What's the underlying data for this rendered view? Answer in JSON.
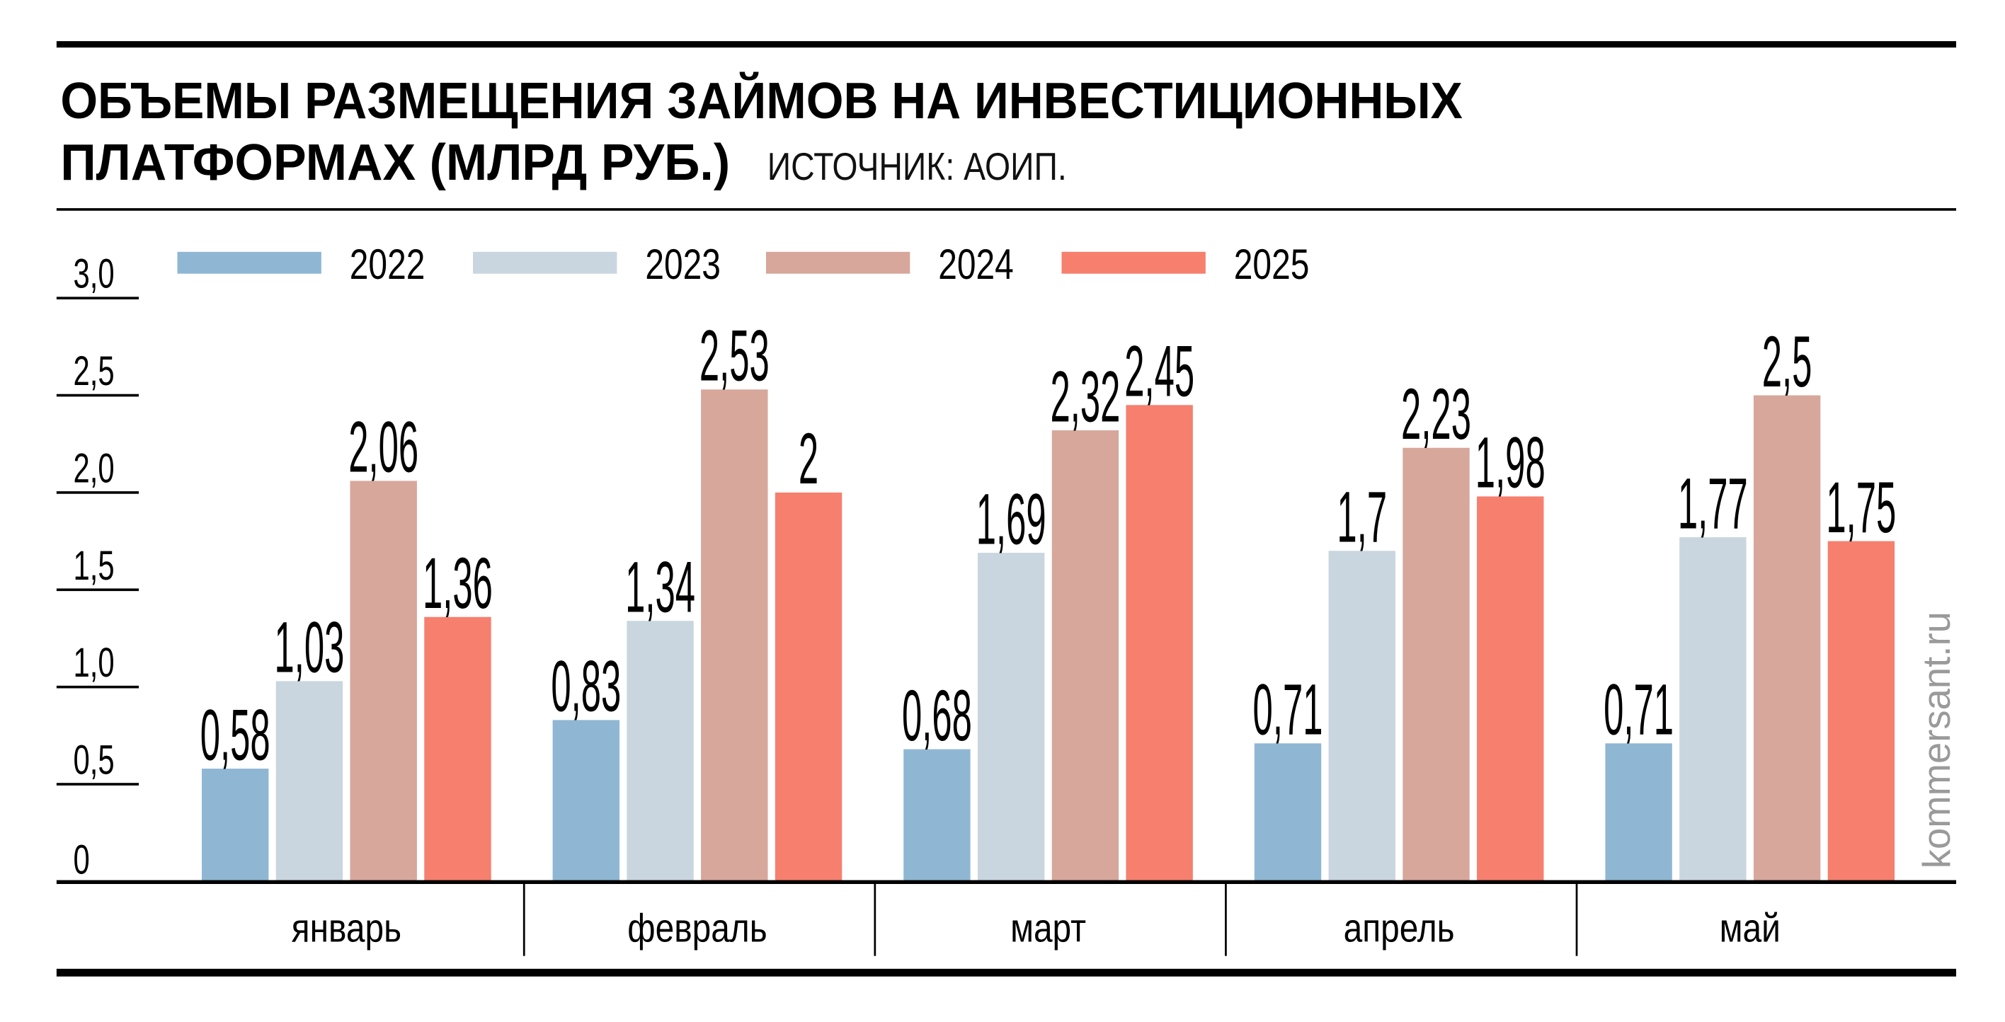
{
  "title_line1": "ОБЪЕМЫ РАЗМЕЩЕНИЯ ЗАЙМОВ НА ИНВЕСТИЦИОННЫХ",
  "title_line2": "ПЛАТФОРМАХ (МЛРД РУБ.)",
  "source": "ИСТОЧНИК: АОИП.",
  "watermark": "kommersant.ru",
  "chart_data": {
    "type": "bar",
    "title": "ОБЪЕМЫ РАЗМЕЩЕНИЯ ЗАЙМОВ НА ИНВЕСТИЦИОННЫХ ПЛАТФОРМАХ (МЛРД РУБ.)",
    "xlabel": "",
    "ylabel": "",
    "ylim": [
      0,
      3.0
    ],
    "yticks": [
      0,
      0.5,
      1.0,
      1.5,
      2.0,
      2.5,
      3.0
    ],
    "ytick_labels": [
      "0",
      "0,5",
      "1,0",
      "1,5",
      "2,0",
      "2,5",
      "3,0"
    ],
    "categories": [
      "январь",
      "февраль",
      "март",
      "апрель",
      "май"
    ],
    "legend_position": "top",
    "series": [
      {
        "name": "2022",
        "color": "#8fb7d4",
        "values": [
          0.58,
          0.83,
          0.68,
          0.71,
          0.71
        ],
        "labels": [
          "0,58",
          "0,83",
          "0,68",
          "0,71",
          "0,71"
        ]
      },
      {
        "name": "2023",
        "color": "#c9d6df",
        "values": [
          1.03,
          1.34,
          1.69,
          1.7,
          1.77
        ],
        "labels": [
          "1,03",
          "1,34",
          "1,69",
          "1,7",
          "1,77"
        ]
      },
      {
        "name": "2024",
        "color": "#d7a79c",
        "values": [
          2.06,
          2.53,
          2.32,
          2.23,
          2.5
        ],
        "labels": [
          "2,06",
          "2,53",
          "2,32",
          "2,23",
          "2,5"
        ]
      },
      {
        "name": "2025",
        "color": "#f67f6e",
        "values": [
          1.36,
          2.0,
          2.45,
          1.98,
          1.75
        ],
        "labels": [
          "1,36",
          "2",
          "2,45",
          "1,98",
          "1,75"
        ]
      }
    ]
  }
}
